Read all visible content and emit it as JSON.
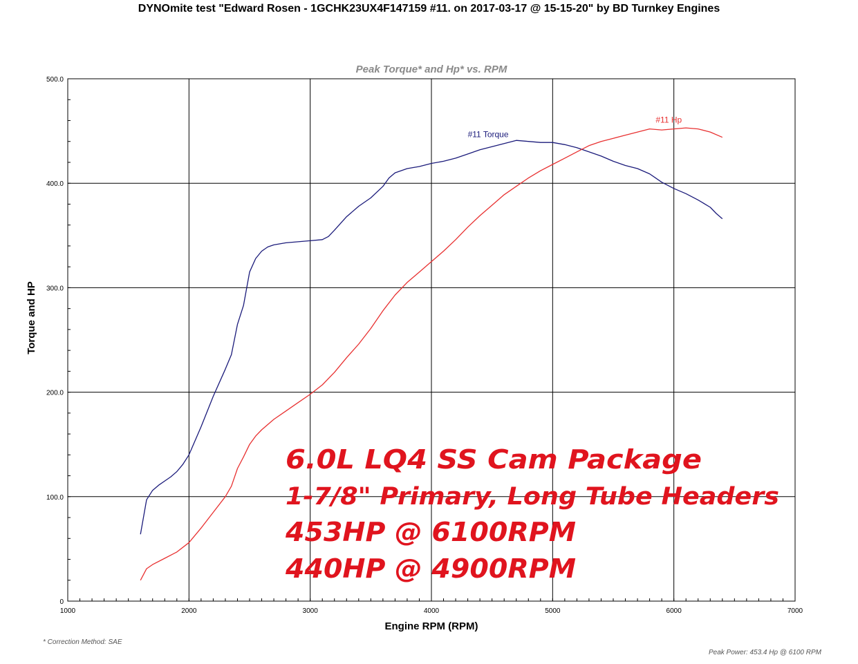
{
  "page": {
    "title": "DYNOmite test \"Edward Rosen - 1GCHK23UX4F147159 #11. on 2017-03-17 @ 15-15-20\" by BD Turnkey Engines",
    "correction_note": "* Correction Method: SAE",
    "peak_note": "Peak Power: 453.4 Hp @ 6100 RPM"
  },
  "overlay": {
    "line1": "6.0L LQ4 SS Cam Package",
    "line2": "1-7/8\" Primary, Long Tube Headers",
    "line3": "453HP @ 6100RPM",
    "line4": "440HP @ 4900RPM",
    "color": "#e0141e"
  },
  "chart_data": {
    "type": "line",
    "title": "Peak Torque* and Hp* vs. RPM",
    "xlabel": "Engine RPM (RPM)",
    "ylabel": "Torque and HP",
    "xlim": [
      1000,
      7000
    ],
    "ylim": [
      0,
      500
    ],
    "x_ticks": [
      1000,
      2000,
      3000,
      4000,
      5000,
      6000,
      7000
    ],
    "y_ticks": [
      0,
      100.0,
      200.0,
      300.0,
      400.0,
      500.0
    ],
    "y_tick_labels": [
      "0",
      "100.0",
      "200.0",
      "300.0",
      "400.0",
      "500.0"
    ],
    "grid": true,
    "series": [
      {
        "name": "#11 Torque",
        "color": "#1a1a7a",
        "x": [
          1600,
          1650,
          1700,
          1750,
          1800,
          1850,
          1900,
          1950,
          2000,
          2100,
          2200,
          2300,
          2350,
          2400,
          2450,
          2500,
          2550,
          2600,
          2650,
          2700,
          2800,
          2900,
          3000,
          3100,
          3150,
          3200,
          3300,
          3400,
          3500,
          3600,
          3650,
          3700,
          3800,
          3900,
          4000,
          4100,
          4200,
          4300,
          4400,
          4500,
          4600,
          4700,
          4800,
          4900,
          5000,
          5100,
          5200,
          5300,
          5400,
          5500,
          5600,
          5700,
          5800,
          5900,
          6000,
          6100,
          6200,
          6300,
          6350,
          6400
        ],
        "values": [
          64,
          97,
          106,
          111,
          115,
          119,
          124,
          131,
          140,
          167,
          196,
          222,
          236,
          265,
          283,
          315,
          328,
          335,
          339,
          341,
          343,
          344,
          345,
          346,
          349,
          355,
          368,
          378,
          386,
          397,
          405,
          410,
          414,
          416,
          419,
          421,
          424,
          428,
          432,
          435,
          438,
          441,
          440,
          439,
          439,
          437,
          434,
          430,
          426,
          421,
          417,
          414,
          409,
          401,
          395,
          390,
          384,
          377,
          371,
          366
        ]
      },
      {
        "name": "#11 Hp",
        "color": "#e83030",
        "x": [
          1600,
          1650,
          1700,
          1800,
          1900,
          2000,
          2100,
          2200,
          2300,
          2350,
          2400,
          2450,
          2500,
          2550,
          2600,
          2700,
          2800,
          2900,
          3000,
          3100,
          3200,
          3300,
          3400,
          3500,
          3600,
          3700,
          3800,
          3900,
          4000,
          4100,
          4200,
          4300,
          4400,
          4500,
          4600,
          4700,
          4800,
          4900,
          5000,
          5100,
          5200,
          5300,
          5400,
          5500,
          5600,
          5700,
          5800,
          5900,
          6000,
          6100,
          6200,
          6300,
          6400
        ],
        "values": [
          20,
          31,
          35,
          41,
          47,
          56,
          70,
          85,
          100,
          110,
          127,
          138,
          150,
          158,
          164,
          174,
          182,
          190,
          198,
          207,
          219,
          233,
          246,
          261,
          278,
          293,
          305,
          315,
          325,
          335,
          346,
          358,
          369,
          379,
          389,
          397,
          405,
          412,
          418,
          424,
          430,
          436,
          440,
          443,
          446,
          449,
          452,
          451,
          452,
          453,
          452,
          449,
          444
        ]
      }
    ]
  }
}
